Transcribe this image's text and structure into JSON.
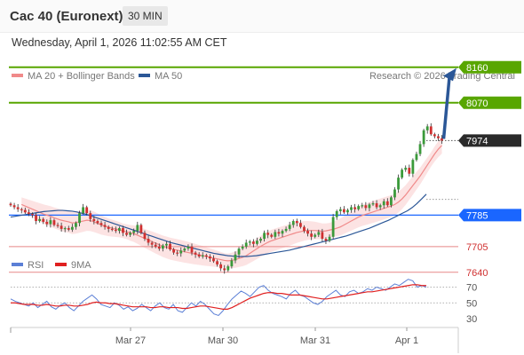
{
  "header": {
    "title": "Cac 40 (Euronext)",
    "timeframe": "30 MIN"
  },
  "date_line": "Wednesday, April 1, 2026 11:02:55 AM CET",
  "legend": {
    "ma20": {
      "label": "MA 20 + Bollinger Bands",
      "color": "#f08a8a"
    },
    "ma50": {
      "label": "MA 50",
      "color": "#2b5797"
    },
    "copyright": "Research © 2026 Trading Central"
  },
  "rsi_legend": {
    "rsi": {
      "label": "RSI",
      "color": "#5b7fd6"
    },
    "ma9": {
      "label": "9MA",
      "color": "#e02020"
    }
  },
  "colors": {
    "up": "#3a9a3a",
    "down": "#d03030",
    "target": "#58a600",
    "pivot": "#1a66ff",
    "support": "#e88888",
    "price": "#2a2a2a",
    "arrow": "#2b5797"
  },
  "chart_data": {
    "type": "candlestick",
    "x_ticks": [
      "Mar 27",
      "Mar 30",
      "Mar 31",
      "Apr 1"
    ],
    "y_range": [
      7590,
      8200
    ],
    "levels": [
      {
        "value": 8160,
        "label": "8160",
        "kind": "resistance"
      },
      {
        "value": 8070,
        "label": "8070",
        "kind": "resistance"
      },
      {
        "value": 7974,
        "label": "7974",
        "kind": "last-price"
      },
      {
        "value": 7785,
        "label": "7785",
        "kind": "pivot"
      },
      {
        "value": 7705,
        "label": "7705",
        "kind": "support"
      },
      {
        "value": 7640,
        "label": "7640",
        "kind": "support"
      }
    ],
    "close": [
      7810,
      7805,
      7800,
      7798,
      7792,
      7788,
      7785,
      7770,
      7775,
      7768,
      7762,
      7772,
      7760,
      7758,
      7750,
      7752,
      7748,
      7755,
      7765,
      7790,
      7805,
      7790,
      7775,
      7770,
      7765,
      7760,
      7755,
      7750,
      7748,
      7745,
      7752,
      7740,
      7735,
      7740,
      7745,
      7760,
      7740,
      7725,
      7715,
      7710,
      7705,
      7700,
      7708,
      7712,
      7698,
      7690,
      7688,
      7695,
      7700,
      7705,
      7690,
      7685,
      7680,
      7683,
      7680,
      7675,
      7668,
      7660,
      7650,
      7645,
      7655,
      7670,
      7685,
      7700,
      7705,
      7715,
      7718,
      7712,
      7720,
      7725,
      7740,
      7735,
      7730,
      7742,
      7738,
      7745,
      7750,
      7760,
      7770,
      7765,
      7755,
      7745,
      7738,
      7730,
      7735,
      7742,
      7725,
      7720,
      7730,
      7780,
      7795,
      7800,
      7792,
      7798,
      7805,
      7800,
      7808,
      7810,
      7803,
      7812,
      7815,
      7805,
      7810,
      7820,
      7810,
      7830,
      7850,
      7880,
      7900,
      7905,
      7890,
      7925,
      7940,
      7965,
      8000,
      8010,
      7990,
      7985,
      7980,
      7974
    ],
    "ma20": [
      7812,
      7808,
      7804,
      7800,
      7796,
      7792,
      7788,
      7785,
      7782,
      7778,
      7775,
      7772,
      7770,
      7768,
      7765,
      7766,
      7768,
      7770,
      7772,
      7771,
      7768,
      7764,
      7760,
      7757,
      7754,
      7752,
      7750,
      7748,
      7745,
      7743,
      7740,
      7738,
      7734,
      7730,
      7726,
      7722,
      7718,
      7714,
      7710,
      7706,
      7703,
      7700,
      7698,
      7696,
      7694,
      7692,
      7690,
      7688,
      7686,
      7684,
      7682,
      7680,
      7678,
      7676,
      7674,
      7672,
      7670,
      7669,
      7670,
      7672,
      7675,
      7678,
      7682,
      7688,
      7694,
      7700,
      7706,
      7711,
      7716,
      7720,
      7723,
      7726,
      7729,
      7732,
      7735,
      7738,
      7741,
      7743,
      7745,
      7746,
      7746,
      7746,
      7745,
      7744,
      7745,
      7747,
      7749,
      7752,
      7755,
      7760,
      7765,
      7770,
      7775,
      7780,
      7784,
      7787,
      7790,
      7793,
      7796,
      7799,
      7802,
      7805,
      7808,
      7812,
      7818,
      7826,
      7836,
      7848,
      7860,
      7872,
      7884,
      7898,
      7912,
      7926,
      7940,
      7952,
      7962
    ],
    "ma50": [
      7780,
      7782,
      7784,
      7786,
      7788,
      7790,
      7792,
      7794,
      7795,
      7796,
      7797,
      7797,
      7796,
      7795,
      7793,
      7790,
      7787,
      7783,
      7779,
      7775,
      7771,
      7767,
      7763,
      7759,
      7755,
      7751,
      7747,
      7743,
      7739,
      7735,
      7731,
      7727,
      7723,
      7719,
      7715,
      7712,
      7709,
      7706,
      7703,
      7700,
      7697,
      7694,
      7691,
      7688,
      7686,
      7684,
      7682,
      7681,
      7680,
      7680,
      7680,
      7681,
      7682,
      7684,
      7686,
      7688,
      7690,
      7692,
      7694,
      7696,
      7699,
      7702,
      7705,
      7708,
      7711,
      7714,
      7717,
      7720,
      7723,
      7726,
      7729,
      7732,
      7736,
      7740,
      7744,
      7748,
      7752,
      7757,
      7762,
      7767,
      7772,
      7778,
      7784,
      7790,
      7796,
      7804,
      7814,
      7826,
      7838
    ],
    "rsi": [
      55,
      52,
      50,
      48,
      46,
      50,
      44,
      48,
      52,
      45,
      42,
      47,
      50,
      44,
      40,
      46,
      52,
      56,
      60,
      55,
      48,
      46,
      44,
      50,
      47,
      42,
      45,
      40,
      43,
      48,
      44,
      40,
      46,
      50,
      44,
      42,
      48,
      40,
      38,
      44,
      50,
      46,
      52,
      48,
      42,
      36,
      34,
      40,
      48,
      55,
      60,
      65,
      62,
      58,
      64,
      70,
      72,
      66,
      62,
      60,
      58,
      55,
      62,
      66,
      60,
      58,
      54,
      50,
      48,
      52,
      58,
      62,
      66,
      60,
      58,
      64,
      66,
      62,
      64,
      68,
      66,
      70,
      68,
      66,
      70,
      74,
      72,
      76,
      80,
      78,
      70,
      72,
      70
    ],
    "rsi_ma": [
      50,
      50,
      49,
      48,
      48,
      48,
      47,
      47,
      48,
      47,
      46,
      46,
      47,
      47,
      46,
      46,
      47,
      48,
      50,
      51,
      50,
      50,
      49,
      49,
      48,
      47,
      46,
      45,
      45,
      45,
      45,
      44,
      44,
      45,
      45,
      44,
      44,
      44,
      43,
      43,
      44,
      45,
      46,
      46,
      45,
      44,
      43,
      42,
      42,
      44,
      47,
      50,
      53,
      56,
      58,
      60,
      62,
      63,
      63,
      62,
      62,
      61,
      60,
      60,
      60,
      59,
      58,
      57,
      56,
      55,
      55,
      56,
      57,
      58,
      59,
      60,
      61,
      62,
      63,
      64,
      64,
      65,
      66,
      67,
      68,
      69,
      70,
      71,
      72,
      73,
      73,
      72,
      72
    ],
    "rsi_ticks": [
      70,
      50,
      30
    ],
    "rsi_range": [
      20,
      100
    ]
  }
}
